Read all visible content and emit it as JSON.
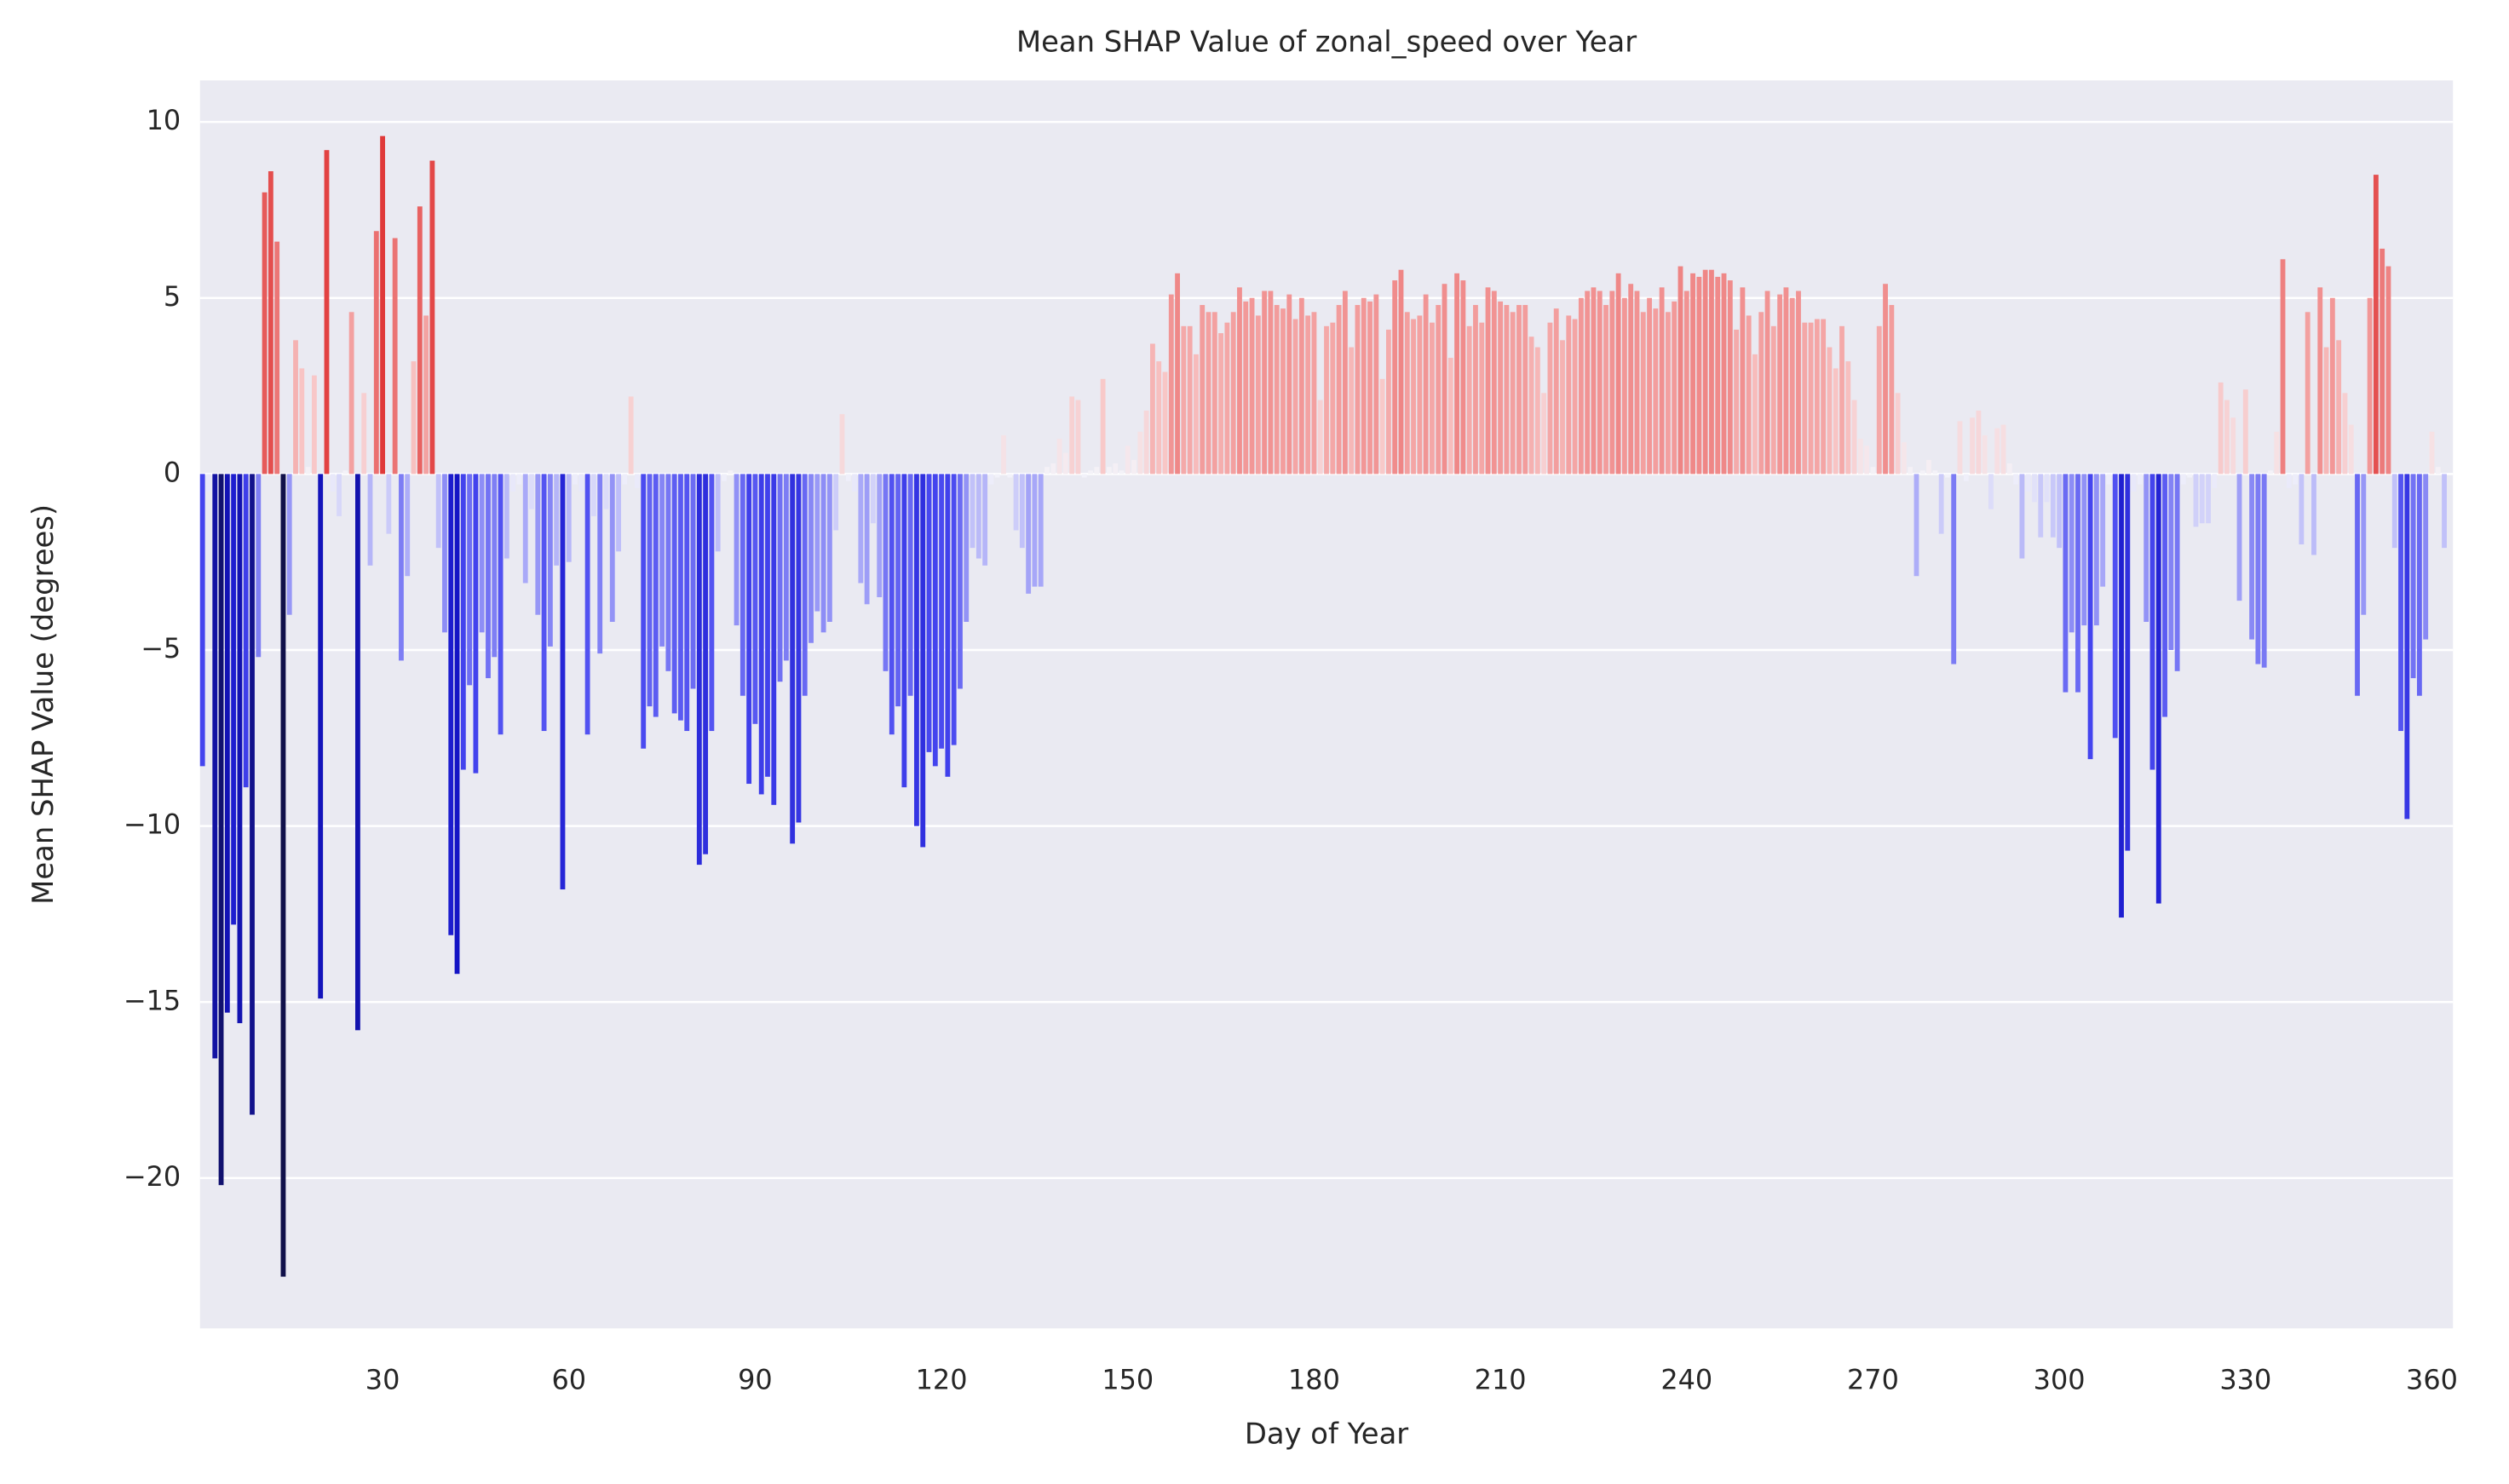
{
  "chart_data": {
    "type": "bar",
    "title": "Mean SHAP Value of zonal_speed over Year",
    "x_label": "Day of Year",
    "y_label": "Mean SHAP Value (degrees)",
    "x": [
      1,
      2,
      3,
      4,
      5,
      6,
      7,
      8,
      9,
      10,
      11,
      12,
      13,
      14,
      15,
      16,
      17,
      18,
      19,
      20,
      21,
      22,
      23,
      24,
      25,
      26,
      27,
      28,
      29,
      30,
      31,
      32,
      33,
      34,
      35,
      36,
      37,
      38,
      39,
      40,
      41,
      42,
      43,
      44,
      45,
      46,
      47,
      48,
      49,
      50,
      51,
      52,
      53,
      54,
      55,
      56,
      57,
      58,
      59,
      60,
      61,
      62,
      63,
      64,
      65,
      66,
      67,
      68,
      69,
      70,
      71,
      72,
      73,
      74,
      75,
      76,
      77,
      78,
      79,
      80,
      81,
      82,
      83,
      84,
      85,
      86,
      87,
      88,
      89,
      90,
      91,
      92,
      93,
      94,
      95,
      96,
      97,
      98,
      99,
      100,
      101,
      102,
      103,
      104,
      105,
      106,
      107,
      108,
      109,
      110,
      111,
      112,
      113,
      114,
      115,
      116,
      117,
      118,
      119,
      120,
      121,
      122,
      123,
      124,
      125,
      126,
      127,
      128,
      129,
      130,
      131,
      132,
      133,
      134,
      135,
      136,
      137,
      138,
      139,
      140,
      141,
      142,
      143,
      144,
      145,
      146,
      147,
      148,
      149,
      150,
      151,
      152,
      153,
      154,
      155,
      156,
      157,
      158,
      159,
      160,
      161,
      162,
      163,
      164,
      165,
      166,
      167,
      168,
      169,
      170,
      171,
      172,
      173,
      174,
      175,
      176,
      177,
      178,
      179,
      180,
      181,
      182,
      183,
      184,
      185,
      186,
      187,
      188,
      189,
      190,
      191,
      192,
      193,
      194,
      195,
      196,
      197,
      198,
      199,
      200,
      201,
      202,
      203,
      204,
      205,
      206,
      207,
      208,
      209,
      210,
      211,
      212,
      213,
      214,
      215,
      216,
      217,
      218,
      219,
      220,
      221,
      222,
      223,
      224,
      225,
      226,
      227,
      228,
      229,
      230,
      231,
      232,
      233,
      234,
      235,
      236,
      237,
      238,
      239,
      240,
      241,
      242,
      243,
      244,
      245,
      246,
      247,
      248,
      249,
      250,
      251,
      252,
      253,
      254,
      255,
      256,
      257,
      258,
      259,
      260,
      261,
      262,
      263,
      264,
      265,
      266,
      267,
      268,
      269,
      270,
      271,
      272,
      273,
      274,
      275,
      276,
      277,
      278,
      279,
      280,
      281,
      282,
      283,
      284,
      285,
      286,
      287,
      288,
      289,
      290,
      291,
      292,
      293,
      294,
      295,
      296,
      297,
      298,
      299,
      300,
      301,
      302,
      303,
      304,
      305,
      306,
      307,
      308,
      309,
      310,
      311,
      312,
      313,
      314,
      315,
      316,
      317,
      318,
      319,
      320,
      321,
      322,
      323,
      324,
      325,
      326,
      327,
      328,
      329,
      330,
      331,
      332,
      333,
      334,
      335,
      336,
      337,
      338,
      339,
      340,
      341,
      342,
      343,
      344,
      345,
      346,
      347,
      348,
      349,
      350,
      351,
      352,
      353,
      354,
      355,
      356,
      357,
      358,
      359,
      360,
      361,
      362
    ],
    "values": [
      -8.3,
      -0.5,
      -16.6,
      -20.2,
      -15.3,
      -12.8,
      -15.6,
      -8.9,
      -18.2,
      -5.2,
      8.0,
      8.6,
      6.6,
      -22.8,
      -4.0,
      3.8,
      3.0,
      0.2,
      2.8,
      -14.9,
      9.2,
      -0.5,
      -1.2,
      0.1,
      4.6,
      -15.8,
      2.3,
      -2.6,
      6.9,
      9.6,
      -1.7,
      6.7,
      -5.3,
      -2.9,
      3.2,
      7.6,
      4.5,
      8.9,
      -2.1,
      -4.5,
      -13.1,
      -14.2,
      -8.4,
      -6.0,
      -8.5,
      -4.5,
      -5.8,
      -5.2,
      -7.4,
      -2.4,
      -0.5,
      -0.3,
      -3.1,
      -1.0,
      -4.0,
      -7.3,
      -4.9,
      -2.6,
      -11.8,
      -2.5,
      -0.3,
      -0.5,
      -7.4,
      -1.2,
      -5.1,
      -1.0,
      -4.2,
      -2.2,
      -0.3,
      2.2,
      -0.4,
      -7.8,
      -6.6,
      -6.9,
      -4.9,
      -5.6,
      -6.8,
      -7.0,
      -7.3,
      -6.1,
      -11.1,
      -10.8,
      -7.3,
      -2.2,
      -0.2,
      0.1,
      -4.3,
      -6.3,
      -8.8,
      -7.1,
      -9.1,
      -8.6,
      -9.4,
      -5.9,
      -5.3,
      -10.5,
      -9.9,
      -6.3,
      -4.8,
      -3.9,
      -4.5,
      -4.2,
      -1.6,
      1.7,
      -0.2,
      -0.5,
      -3.1,
      -3.7,
      -1.4,
      -3.5,
      -5.6,
      -7.4,
      -6.6,
      -8.9,
      -6.3,
      -10.0,
      -10.6,
      -7.9,
      -8.3,
      -7.8,
      -8.6,
      -7.7,
      -6.1,
      -4.2,
      -2.1,
      -2.4,
      -2.6,
      -0.3,
      -0.1,
      1.1,
      -0.1,
      -1.6,
      -2.1,
      -3.4,
      -3.2,
      -3.2,
      0.2,
      0.3,
      1.0,
      0.6,
      2.2,
      2.1,
      -0.1,
      0.1,
      0.2,
      2.7,
      0.2,
      0.3,
      0.1,
      0.8,
      0.4,
      1.2,
      1.8,
      3.7,
      3.2,
      2.9,
      5.1,
      5.7,
      4.2,
      4.2,
      3.4,
      4.8,
      4.6,
      4.6,
      4.0,
      4.3,
      4.6,
      5.3,
      4.9,
      5.0,
      4.5,
      5.2,
      5.2,
      4.8,
      4.7,
      5.1,
      4.4,
      5.0,
      4.5,
      4.6,
      2.1,
      4.2,
      4.3,
      4.8,
      5.2,
      3.6,
      4.8,
      5.0,
      4.9,
      5.1,
      2.7,
      4.1,
      5.5,
      5.8,
      4.6,
      4.4,
      4.5,
      5.1,
      4.3,
      4.8,
      5.4,
      3.3,
      5.7,
      5.5,
      4.2,
      4.8,
      4.3,
      5.3,
      5.2,
      4.9,
      4.8,
      4.6,
      4.8,
      4.8,
      3.9,
      3.6,
      2.3,
      4.3,
      4.7,
      3.8,
      4.5,
      4.4,
      5.0,
      5.2,
      5.3,
      5.2,
      4.8,
      5.2,
      5.7,
      5.0,
      5.4,
      5.2,
      4.6,
      5.0,
      4.7,
      5.3,
      4.6,
      4.9,
      5.9,
      5.2,
      5.7,
      5.6,
      5.8,
      5.8,
      5.6,
      5.7,
      5.5,
      4.1,
      5.3,
      4.5,
      3.4,
      4.6,
      5.2,
      4.2,
      5.1,
      5.3,
      5.0,
      5.2,
      4.3,
      4.3,
      4.4,
      4.4,
      3.6,
      3.0,
      4.2,
      3.2,
      2.1,
      1.0,
      0.8,
      0.2,
      4.2,
      5.4,
      4.8,
      2.3,
      0.9,
      0.2,
      -2.9,
      0.1,
      0.4,
      0.1,
      -1.7,
      -0.1,
      -5.4,
      1.5,
      -0.2,
      1.6,
      1.8,
      1.1,
      -1.0,
      1.3,
      1.4,
      0.3,
      -0.3,
      -2.4,
      -0.5,
      -0.8,
      -1.8,
      -0.8,
      -1.8,
      -2.1,
      -6.2,
      -4.5,
      -6.2,
      -4.3,
      -8.1,
      -4.3,
      -3.2,
      -0.3,
      -7.5,
      -12.6,
      -10.7,
      -0.5,
      -0.3,
      -4.2,
      -8.4,
      -12.2,
      -6.9,
      -5.0,
      -5.6,
      -0.3,
      -0.1,
      -1.5,
      -1.4,
      -1.4,
      -0.4,
      2.6,
      2.1,
      1.6,
      -3.6,
      2.4,
      -4.7,
      -5.4,
      -5.5,
      0.1,
      1.2,
      6.1,
      -0.4,
      -0.3,
      -2.0,
      4.6,
      -2.3,
      5.3,
      3.6,
      5.0,
      3.8,
      2.3,
      1.4,
      -6.3,
      -4.0,
      5.0,
      8.5,
      6.4,
      5.9,
      -2.1,
      -7.3,
      -9.8,
      -5.8,
      -6.3,
      -4.7,
      1.2,
      0.2,
      -2.1
    ],
    "color_scale": [
      [
        -22.8,
        "#10104a"
      ],
      [
        -14,
        "#1414c8"
      ],
      [
        -8,
        "#4646f0"
      ],
      [
        -3,
        "#ababf8"
      ],
      [
        0,
        "#f4f4fa"
      ],
      [
        3,
        "#f8c4c4"
      ],
      [
        5.5,
        "#f08c8c"
      ],
      [
        9.6,
        "#e03a3a"
      ]
    ],
    "xlim": [
      0.6,
      363.4
    ],
    "ylim": [
      -24.27,
      11.18
    ],
    "xticks": [
      30,
      60,
      90,
      120,
      150,
      180,
      210,
      240,
      270,
      300,
      330,
      360
    ],
    "yticks": [
      {
        "value": -20,
        "label": "−20"
      },
      {
        "value": -15,
        "label": "−15"
      },
      {
        "value": -10,
        "label": "−10"
      },
      {
        "value": -5,
        "label": "−5"
      },
      0,
      5,
      10
    ],
    "grid": true
  }
}
